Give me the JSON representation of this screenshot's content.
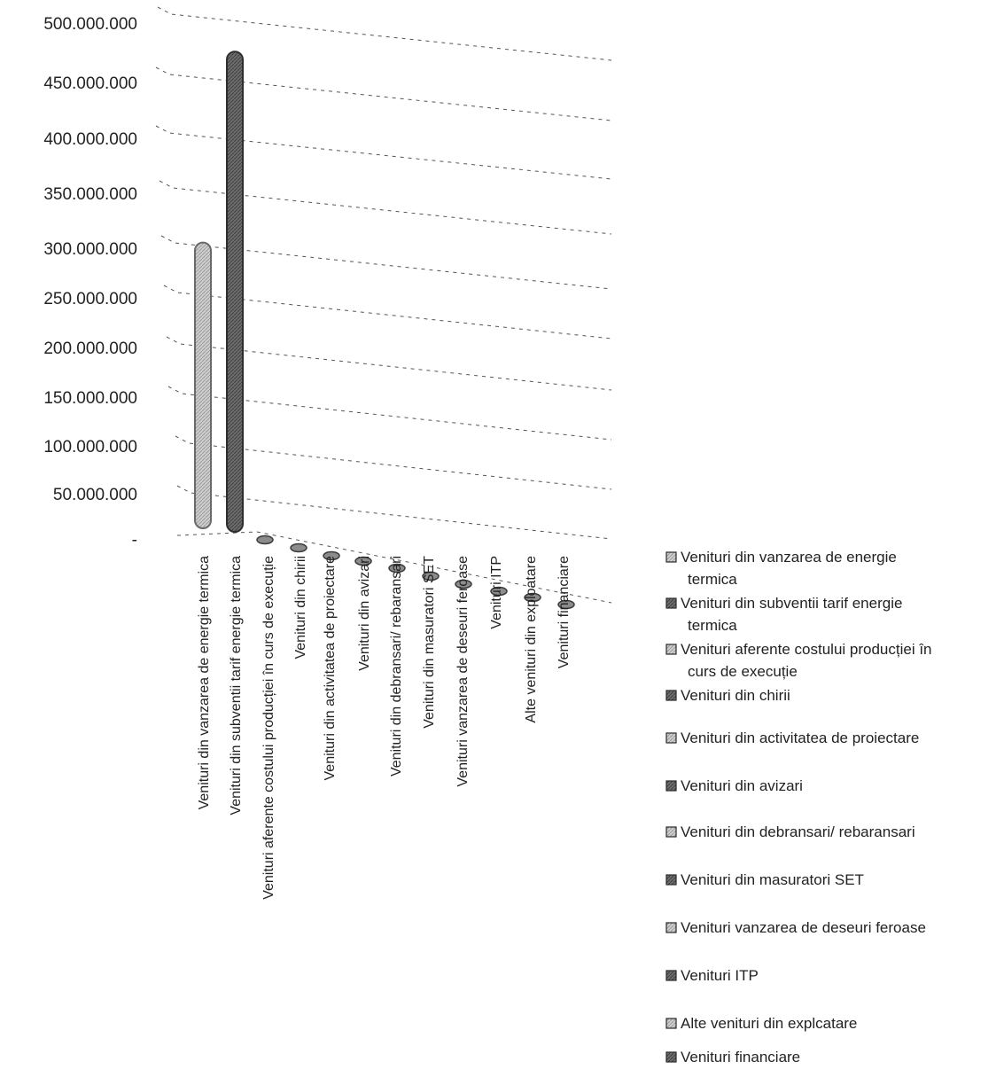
{
  "chart_data": {
    "type": "bar",
    "style": "3d-cylinder",
    "title": "",
    "xlabel": "",
    "ylabel": "",
    "ylim": [
      0,
      500000000
    ],
    "y_ticks": [
      "-",
      "50.000.000",
      "100.000.000",
      "150.000.000",
      "200.000.000",
      "250.000.000",
      "300.000.000",
      "350.000.000",
      "400.000.000",
      "450.000.000",
      "500.000.000"
    ],
    "grid": true,
    "legend_position": "right",
    "categories": [
      "Venituri din vanzarea de energie termica",
      "Venituri din subventii tarif energie termica",
      "Venituri aferente costului producției în curs de execuție",
      "Venituri din chirii",
      "Venituri din activitatea de proiectare",
      "Venituri din avizari",
      "Venituri din debransari/ rebaransari",
      "Venituri din masuratori SET",
      "Venituri vanzarea de deseuri feroase",
      "Venituri ITP",
      "Alte venituri din exploatare",
      "Venituri financiare"
    ],
    "values": [
      295000000,
      470000000,
      0,
      0,
      0,
      0,
      0,
      0,
      0,
      0,
      0,
      0
    ],
    "legend": [
      [
        "Venituri din vanzarea de energie",
        "termica"
      ],
      [
        "Venituri din subventii tarif energie",
        "termica"
      ],
      [
        "Venituri aferente costului producției în",
        "curs de execuție"
      ],
      [
        "Venituri din chirii"
      ],
      [
        "Venituri din activitatea de proiectare"
      ],
      [
        "Venituri din avizari"
      ],
      [
        "Venituri din debransari/ rebaransari"
      ],
      [
        "Venituri din masuratori SET"
      ],
      [
        "Venituri vanzarea de deseuri feroase"
      ],
      [
        "Venituri ITP"
      ],
      [
        "Alte venituri din explcatare"
      ],
      [
        "Venituri financiare"
      ]
    ],
    "colors": {
      "bar_light": "#c4c4c4",
      "bar_dark": "#6a6a6a",
      "stub": "#8c8c8c",
      "grid": "#555555"
    }
  }
}
